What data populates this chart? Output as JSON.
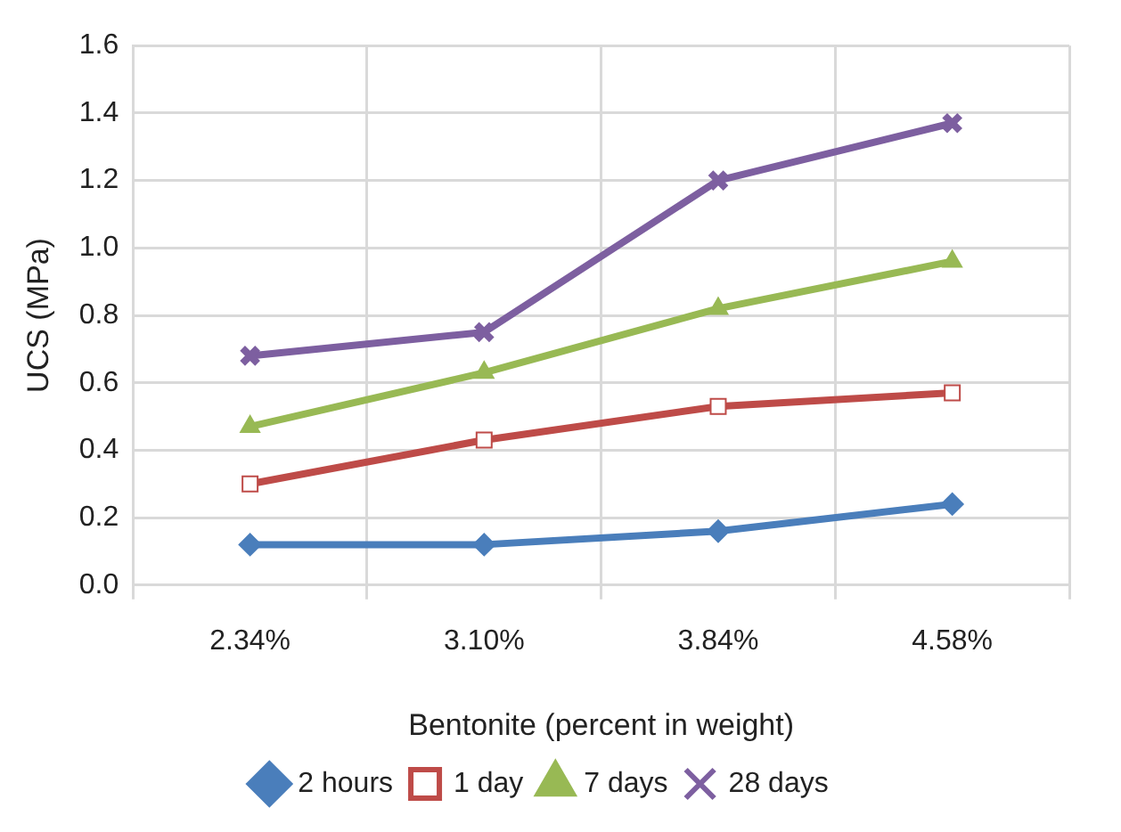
{
  "chart_data": {
    "type": "line",
    "xlabel": "Bentonite (percent in weight)",
    "ylabel": "UCS (MPa)",
    "categories": [
      "2.34%",
      "3.10%",
      "3.84%",
      "4.58%"
    ],
    "series": [
      {
        "name": "2 hours",
        "color": "#4a7ebb",
        "marker": "diamond",
        "values": [
          0.12,
          0.12,
          0.16,
          0.24
        ]
      },
      {
        "name": "1 day",
        "color": "#be4b48",
        "marker": "square",
        "values": [
          0.3,
          0.43,
          0.53,
          0.57
        ]
      },
      {
        "name": "7 days",
        "color": "#98b954",
        "marker": "triangle",
        "values": [
          0.47,
          0.63,
          0.82,
          0.96
        ]
      },
      {
        "name": "28 days",
        "color": "#7d5fa0",
        "marker": "cross",
        "values": [
          0.68,
          0.75,
          1.2,
          1.37
        ]
      }
    ],
    "ylim": [
      0,
      1.6
    ],
    "yticks": [
      {
        "value": 0,
        "label": "0.0"
      },
      0.2,
      0.4,
      0.6,
      0.8,
      {
        "value": 1,
        "label": "1.0"
      },
      1.2,
      1.4,
      1.6
    ],
    "grid": true,
    "legend": "bottom"
  }
}
